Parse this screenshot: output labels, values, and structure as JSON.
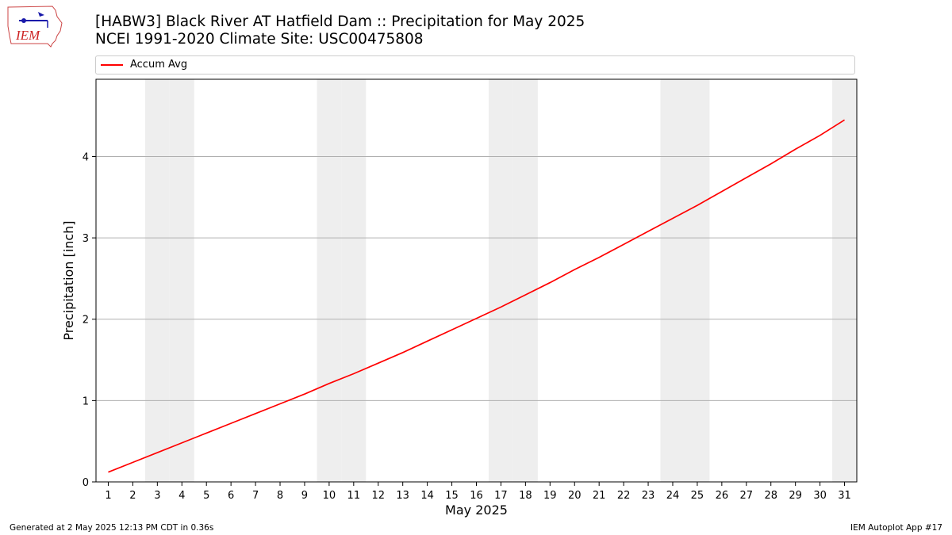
{
  "header": {
    "title_line1": "[HABW3] Black River  AT Hatfield Dam :: Precipitation for May 2025",
    "title_line2": "NCEI 1991-2020 Climate Site: USC00475808",
    "logo_text": "IEM"
  },
  "footer": {
    "left": "Generated at 2 May 2025 12:13 PM CDT in 0.36s",
    "right": "IEM Autoplot App #17"
  },
  "colors": {
    "line": "#ff0000",
    "weekend": "#eeeeee",
    "grid": "#b0b0b0"
  },
  "chart_data": {
    "type": "line",
    "xlabel": "May 2025",
    "ylabel": "Precipitation [inch]",
    "xlim": [
      0.5,
      31.5
    ],
    "ylim": [
      0,
      4.95
    ],
    "grid": "y",
    "legend_placement": "top",
    "x": [
      1,
      2,
      3,
      4,
      5,
      6,
      7,
      8,
      9,
      10,
      11,
      12,
      13,
      14,
      15,
      16,
      17,
      18,
      19,
      20,
      21,
      22,
      23,
      24,
      25,
      26,
      27,
      28,
      29,
      30,
      31
    ],
    "x_tick_labels": [
      "1",
      "2",
      "3",
      "4",
      "5",
      "6",
      "7",
      "8",
      "9",
      "10",
      "11",
      "12",
      "13",
      "14",
      "15",
      "16",
      "17",
      "18",
      "19",
      "20",
      "21",
      "22",
      "23",
      "24",
      "25",
      "26",
      "27",
      "28",
      "29",
      "30",
      "31"
    ],
    "y_ticks": [
      0,
      1,
      2,
      3,
      4
    ],
    "weekend_days": [
      3,
      4,
      10,
      11,
      17,
      18,
      24,
      25,
      31
    ],
    "series": [
      {
        "name": "Accum Avg",
        "color": "#ff0000",
        "values": [
          0.12,
          0.24,
          0.36,
          0.48,
          0.6,
          0.72,
          0.84,
          0.96,
          1.08,
          1.21,
          1.33,
          1.46,
          1.59,
          1.73,
          1.87,
          2.01,
          2.15,
          2.3,
          2.45,
          2.61,
          2.76,
          2.92,
          3.08,
          3.24,
          3.4,
          3.57,
          3.74,
          3.91,
          4.09,
          4.26,
          4.45
        ]
      }
    ]
  }
}
